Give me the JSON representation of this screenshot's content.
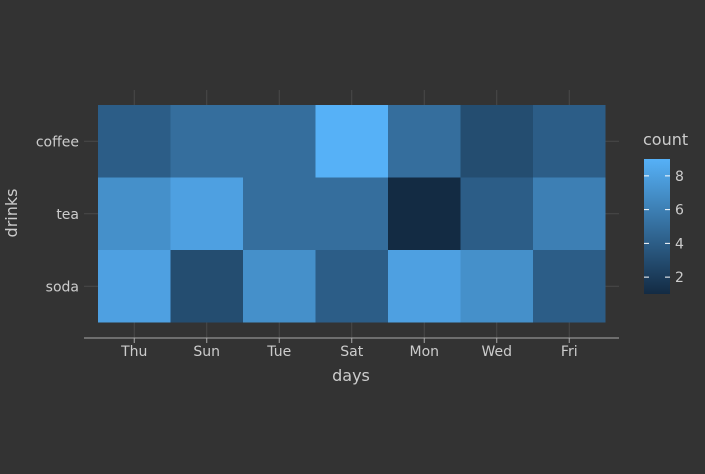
{
  "chart_data": {
    "type": "heatmap",
    "title": "",
    "xlabel": "days",
    "ylabel": "drinks",
    "x_categories": [
      "Thu",
      "Sun",
      "Tue",
      "Sat",
      "Mon",
      "Wed",
      "Fri"
    ],
    "y_categories": [
      "coffee",
      "tea",
      "soda"
    ],
    "values": [
      [
        4,
        5,
        5,
        9,
        5,
        3,
        4
      ],
      [
        7,
        8,
        5,
        5,
        1,
        4,
        6
      ],
      [
        8,
        3,
        7,
        4,
        8,
        7,
        4
      ]
    ],
    "color_scale": {
      "title": "count",
      "domain": [
        1,
        9
      ],
      "ticks": [
        2,
        4,
        6,
        8
      ],
      "low_color": "#132B43",
      "high_color": "#56B1F7"
    },
    "legend_position": "right",
    "grid": true
  },
  "colors": {
    "background": "#333333",
    "text": "#cccccc",
    "grid": "#4a4a4a",
    "axis_line": "#aaaaaa"
  }
}
